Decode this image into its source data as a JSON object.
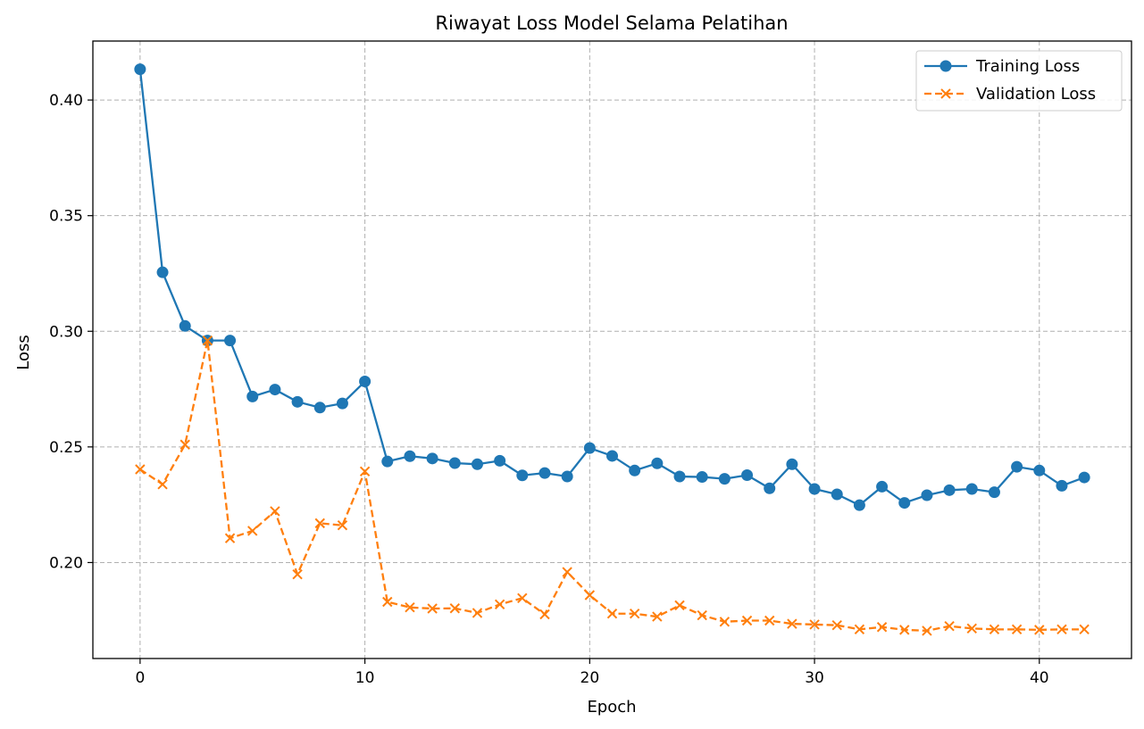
{
  "chart_data": {
    "type": "line",
    "title": "Riwayat Loss Model Selama Pelatihan",
    "xlabel": "Epoch",
    "ylabel": "Loss",
    "xlim": [
      -2.1,
      44.1
    ],
    "ylim": [
      0.1585,
      0.4255
    ],
    "xticks": [
      0,
      10,
      20,
      30,
      40
    ],
    "yticks": [
      0.2,
      0.25,
      0.3,
      0.35,
      0.4
    ],
    "xtick_labels": [
      "0",
      "10",
      "20",
      "30",
      "40"
    ],
    "ytick_labels": [
      "0.20",
      "0.25",
      "0.30",
      "0.35",
      "0.40"
    ],
    "grid": true,
    "legend_position": "top-right",
    "x": [
      0,
      1,
      2,
      3,
      4,
      5,
      6,
      7,
      8,
      9,
      10,
      11,
      12,
      13,
      14,
      15,
      16,
      17,
      18,
      19,
      20,
      21,
      22,
      23,
      24,
      25,
      26,
      27,
      28,
      29,
      30,
      31,
      32,
      33,
      34,
      35,
      36,
      37,
      38,
      39,
      40,
      41,
      42
    ],
    "series": [
      {
        "name": "Training Loss",
        "color": "#1f77b4",
        "line_style": "solid",
        "marker": "circle",
        "values": [
          0.4133,
          0.3255,
          0.3023,
          0.296,
          0.296,
          0.2718,
          0.2748,
          0.2695,
          0.267,
          0.2688,
          0.2783,
          0.2437,
          0.246,
          0.245,
          0.243,
          0.2425,
          0.244,
          0.2377,
          0.2387,
          0.2372,
          0.2495,
          0.2461,
          0.2398,
          0.2429,
          0.2372,
          0.237,
          0.2362,
          0.2378,
          0.2321,
          0.2425,
          0.2318,
          0.2295,
          0.2248,
          0.2328,
          0.2258,
          0.2291,
          0.2313,
          0.2318,
          0.2304,
          0.2414,
          0.2398,
          0.2332,
          0.2368
        ]
      },
      {
        "name": "Validation Loss",
        "color": "#ff7f0e",
        "line_style": "dashed",
        "marker": "x",
        "values": [
          0.2403,
          0.2338,
          0.251,
          0.296,
          0.2105,
          0.2137,
          0.2222,
          0.1949,
          0.217,
          0.2161,
          0.2394,
          0.183,
          0.1806,
          0.1801,
          0.1802,
          0.1782,
          0.1819,
          0.1846,
          0.1776,
          0.1959,
          0.1859,
          0.1779,
          0.1779,
          0.1766,
          0.1815,
          0.1772,
          0.1744,
          0.1749,
          0.1749,
          0.1735,
          0.1732,
          0.1729,
          0.1711,
          0.1721,
          0.1709,
          0.1705,
          0.1725,
          0.1715,
          0.1711,
          0.1711,
          0.1709,
          0.1711,
          0.1711
        ]
      }
    ]
  }
}
